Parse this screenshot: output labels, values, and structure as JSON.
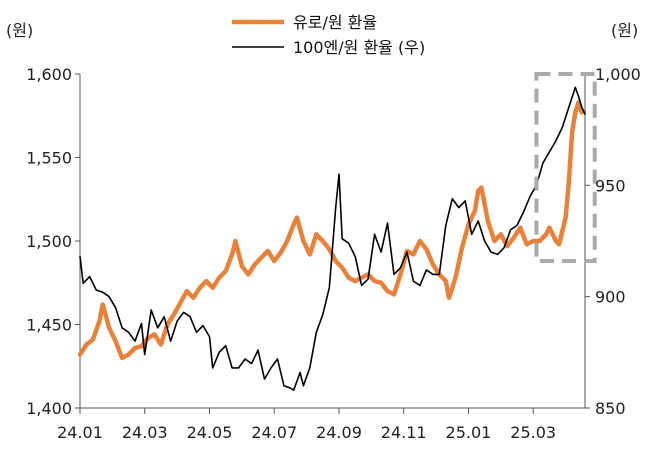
{
  "chart_data": {
    "type": "line",
    "left_unit": "(원)",
    "right_unit": "(원)",
    "y_left": {
      "min": 1400,
      "max": 1600,
      "ticks": [
        "1,400",
        "1,450",
        "1,500",
        "1,550",
        "1,600"
      ],
      "tick_values": [
        1400,
        1450,
        1500,
        1550,
        1600
      ]
    },
    "y_right": {
      "min": 850,
      "max": 1000,
      "ticks": [
        "850",
        "900",
        "950",
        "1,000"
      ],
      "tick_values": [
        850,
        900,
        950,
        1000
      ]
    },
    "x_ticks": [
      "24.01",
      "24.03",
      "24.05",
      "24.07",
      "24.09",
      "24.11",
      "25.01",
      "25.03"
    ],
    "x_tick_months": [
      0,
      2,
      4,
      6,
      8,
      10,
      12,
      14
    ],
    "x_range_months": [
      0,
      15.6
    ],
    "legend": [
      {
        "label": "유로/원 환율",
        "color": "#E8823A"
      },
      {
        "label": "100엔/원 환율 (우)",
        "color": "#000000"
      }
    ],
    "series": [
      {
        "name": "유로/원 환율",
        "axis": "left",
        "color": "#E8823A",
        "points": [
          [
            0.0,
            1432
          ],
          [
            0.2,
            1438
          ],
          [
            0.4,
            1441
          ],
          [
            0.6,
            1452
          ],
          [
            0.7,
            1462
          ],
          [
            0.9,
            1448
          ],
          [
            1.1,
            1440
          ],
          [
            1.3,
            1430
          ],
          [
            1.5,
            1432
          ],
          [
            1.7,
            1436
          ],
          [
            1.9,
            1437
          ],
          [
            2.1,
            1442
          ],
          [
            2.3,
            1444
          ],
          [
            2.5,
            1438
          ],
          [
            2.7,
            1450
          ],
          [
            2.9,
            1456
          ],
          [
            3.1,
            1463
          ],
          [
            3.3,
            1470
          ],
          [
            3.5,
            1466
          ],
          [
            3.7,
            1472
          ],
          [
            3.9,
            1476
          ],
          [
            4.1,
            1472
          ],
          [
            4.3,
            1478
          ],
          [
            4.5,
            1482
          ],
          [
            4.7,
            1492
          ],
          [
            4.8,
            1500
          ],
          [
            5.0,
            1485
          ],
          [
            5.2,
            1480
          ],
          [
            5.4,
            1486
          ],
          [
            5.6,
            1490
          ],
          [
            5.8,
            1494
          ],
          [
            6.0,
            1488
          ],
          [
            6.2,
            1493
          ],
          [
            6.4,
            1500
          ],
          [
            6.6,
            1510
          ],
          [
            6.7,
            1514
          ],
          [
            6.9,
            1500
          ],
          [
            7.1,
            1492
          ],
          [
            7.3,
            1504
          ],
          [
            7.5,
            1500
          ],
          [
            7.7,
            1495
          ],
          [
            7.9,
            1488
          ],
          [
            8.1,
            1484
          ],
          [
            8.3,
            1478
          ],
          [
            8.5,
            1476
          ],
          [
            8.7,
            1478
          ],
          [
            8.9,
            1480
          ],
          [
            9.1,
            1476
          ],
          [
            9.3,
            1475
          ],
          [
            9.5,
            1470
          ],
          [
            9.7,
            1468
          ],
          [
            9.9,
            1480
          ],
          [
            10.1,
            1494
          ],
          [
            10.3,
            1492
          ],
          [
            10.5,
            1500
          ],
          [
            10.7,
            1495
          ],
          [
            10.9,
            1486
          ],
          [
            11.1,
            1480
          ],
          [
            11.3,
            1476
          ],
          [
            11.4,
            1466
          ],
          [
            11.6,
            1478
          ],
          [
            11.8,
            1496
          ],
          [
            12.0,
            1510
          ],
          [
            12.2,
            1518
          ],
          [
            12.3,
            1530
          ],
          [
            12.4,
            1532
          ],
          [
            12.6,
            1512
          ],
          [
            12.8,
            1500
          ],
          [
            13.0,
            1504
          ],
          [
            13.2,
            1497
          ],
          [
            13.4,
            1502
          ],
          [
            13.6,
            1508
          ],
          [
            13.8,
            1498
          ],
          [
            14.0,
            1500
          ],
          [
            14.2,
            1500
          ],
          [
            14.4,
            1504
          ],
          [
            14.5,
            1508
          ],
          [
            14.7,
            1500
          ],
          [
            14.8,
            1498
          ],
          [
            15.0,
            1514
          ],
          [
            15.1,
            1535
          ],
          [
            15.2,
            1565
          ],
          [
            15.3,
            1577
          ],
          [
            15.4,
            1583
          ],
          [
            15.5,
            1577
          ]
        ]
      },
      {
        "name": "100엔/원 환율 (우)",
        "axis": "right",
        "color": "#000000",
        "points": [
          [
            0.0,
            918
          ],
          [
            0.1,
            906
          ],
          [
            0.3,
            909
          ],
          [
            0.5,
            903
          ],
          [
            0.7,
            902
          ],
          [
            0.9,
            900
          ],
          [
            1.1,
            895
          ],
          [
            1.3,
            886
          ],
          [
            1.5,
            884
          ],
          [
            1.7,
            880
          ],
          [
            1.9,
            888
          ],
          [
            2.0,
            874
          ],
          [
            2.2,
            894
          ],
          [
            2.4,
            886
          ],
          [
            2.6,
            891
          ],
          [
            2.8,
            880
          ],
          [
            3.0,
            889
          ],
          [
            3.2,
            893
          ],
          [
            3.4,
            891
          ],
          [
            3.6,
            884
          ],
          [
            3.8,
            887
          ],
          [
            4.0,
            882
          ],
          [
            4.1,
            868
          ],
          [
            4.3,
            875
          ],
          [
            4.5,
            878
          ],
          [
            4.7,
            868
          ],
          [
            4.9,
            868
          ],
          [
            5.1,
            872
          ],
          [
            5.3,
            870
          ],
          [
            5.5,
            876
          ],
          [
            5.7,
            863
          ],
          [
            5.9,
            868
          ],
          [
            6.1,
            872
          ],
          [
            6.3,
            860
          ],
          [
            6.5,
            859
          ],
          [
            6.6,
            858
          ],
          [
            6.8,
            866
          ],
          [
            6.9,
            860
          ],
          [
            7.1,
            868
          ],
          [
            7.3,
            884
          ],
          [
            7.5,
            892
          ],
          [
            7.7,
            904
          ],
          [
            7.9,
            940
          ],
          [
            8.0,
            955
          ],
          [
            8.1,
            926
          ],
          [
            8.3,
            924
          ],
          [
            8.5,
            918
          ],
          [
            8.7,
            905
          ],
          [
            8.9,
            908
          ],
          [
            9.1,
            928
          ],
          [
            9.3,
            920
          ],
          [
            9.5,
            933
          ],
          [
            9.7,
            910
          ],
          [
            9.9,
            913
          ],
          [
            10.1,
            920
          ],
          [
            10.3,
            907
          ],
          [
            10.5,
            905
          ],
          [
            10.7,
            912
          ],
          [
            10.9,
            910
          ],
          [
            11.1,
            910
          ],
          [
            11.3,
            932
          ],
          [
            11.5,
            944
          ],
          [
            11.7,
            940
          ],
          [
            11.9,
            943
          ],
          [
            12.1,
            928
          ],
          [
            12.3,
            934
          ],
          [
            12.5,
            925
          ],
          [
            12.7,
            920
          ],
          [
            12.9,
            919
          ],
          [
            13.1,
            922
          ],
          [
            13.3,
            930
          ],
          [
            13.5,
            932
          ],
          [
            13.7,
            938
          ],
          [
            13.9,
            945
          ],
          [
            14.1,
            950
          ],
          [
            14.3,
            960
          ],
          [
            14.5,
            965
          ],
          [
            14.7,
            970
          ],
          [
            14.9,
            976
          ],
          [
            15.1,
            985
          ],
          [
            15.3,
            994
          ],
          [
            15.4,
            990
          ],
          [
            15.5,
            985
          ],
          [
            15.6,
            982
          ]
        ]
      }
    ],
    "highlight_box": {
      "x_months": [
        14.1,
        15.9
      ],
      "y_left": [
        1488,
        1600
      ]
    }
  }
}
